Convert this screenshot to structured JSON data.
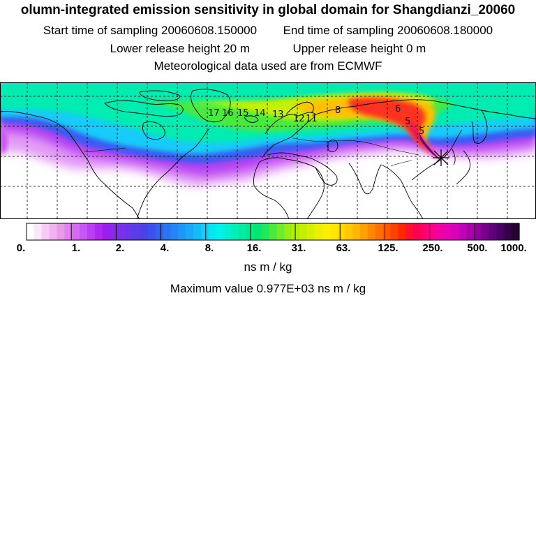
{
  "header": {
    "title": "olumn-integrated emission sensitivity in global domain for Shangdianzi_20060",
    "start_label": "Start time of sampling 20060608.150000",
    "end_label": "End time of sampling 20060608.180000",
    "lower_label": "Lower release height   20 m",
    "upper_label": "Upper release height    0 m",
    "met_label": "Meteorological data used are from ECMWF"
  },
  "map": {
    "contour_labels": [
      "17",
      "16",
      "15",
      "14",
      "13",
      "12",
      "11",
      "8",
      "6",
      "5",
      "5"
    ],
    "receptor_marker": "Shangdianzi"
  },
  "colorbar": {
    "tick_labels": [
      "0.",
      "1.",
      "2.",
      "4.",
      "8.",
      "16.",
      "31.",
      "63.",
      "125.",
      "250.",
      "500.",
      "1000."
    ],
    "colors": [
      "#ffffff",
      "#fbe6fb",
      "#f6ccf6",
      "#f0b2f0",
      "#e99ae9",
      "#e182f0",
      "#d46cf2",
      "#c856f2",
      "#bb3ff2",
      "#ad28f2",
      "#9a20f0",
      "#8a28ee",
      "#7a30ec",
      "#6a36ea",
      "#5a3ce8",
      "#4a42e6",
      "#3c50f0",
      "#3262f2",
      "#2a74f4",
      "#2486f6",
      "#1e98f8",
      "#18aaf8",
      "#12bcf8",
      "#0ccef8",
      "#00e8f0",
      "#00f2e8",
      "#00f0d0",
      "#00eeb8",
      "#00eca0",
      "#00ea88",
      "#00e670",
      "#20e858",
      "#48ea40",
      "#70ec28",
      "#98ee10",
      "#b0f000",
      "#c4f000",
      "#d8f000",
      "#ecf000",
      "#f8f000",
      "#ffe800",
      "#ffd800",
      "#ffc800",
      "#ffb800",
      "#ffa000",
      "#ff8800",
      "#ff7000",
      "#ff5800",
      "#ff4000",
      "#ff2800",
      "#ff1030",
      "#ff0050",
      "#ff0070",
      "#f80088",
      "#f000a0",
      "#e600b0",
      "#d800b8",
      "#c400b8",
      "#aa00a8",
      "#8e0098",
      "#760088",
      "#600078",
      "#4a0060",
      "#340048",
      "#260030"
    ]
  },
  "units_label": "ns m / kg",
  "max_label": "Maximum value  0.977E+03 ns m / kg"
}
